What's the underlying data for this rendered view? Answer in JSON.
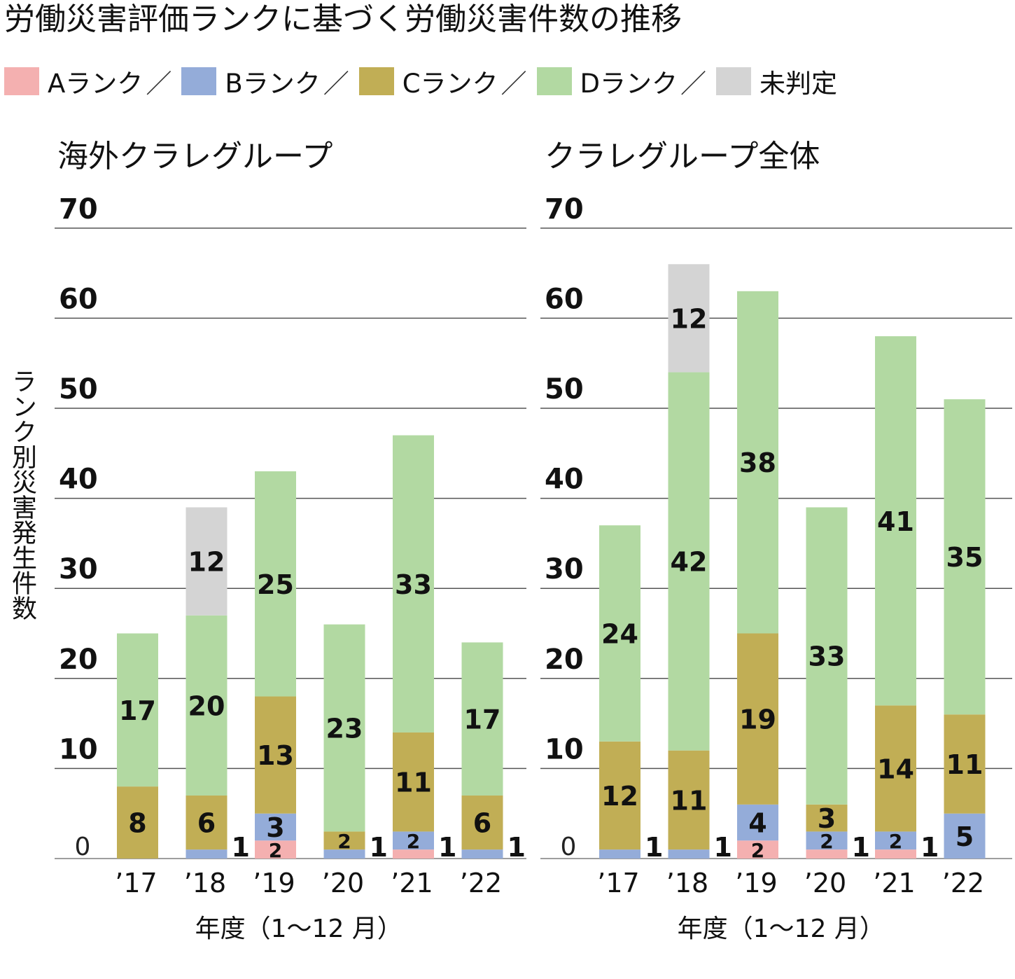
{
  "title": "労働災害評価ランクに基づく労働災害件数の推移",
  "legend": [
    {
      "label": "Aランク",
      "color": "#f4b0b0",
      "sep": "／"
    },
    {
      "label": "Bランク",
      "color": "#94acd9",
      "sep": "／"
    },
    {
      "label": "Cランク",
      "color": "#c1ae55",
      "sep": "／"
    },
    {
      "label": "Dランク",
      "color": "#b2d9a2",
      "sep": "／"
    },
    {
      "label": "未判定",
      "color": "#d4d4d4",
      "sep": ""
    }
  ],
  "y_axis_title": "ランク別災害発生件数",
  "chart_data": [
    {
      "type": "bar",
      "stacked": true,
      "title": "海外クラレグループ",
      "xlabel": "年度（1〜12 月）",
      "ylim": [
        0,
        70
      ],
      "yticks": [
        "0",
        "10",
        "20",
        "30",
        "40",
        "50",
        "60",
        "70"
      ],
      "categories": [
        "’17",
        "’18",
        "’19",
        "’20",
        "’21",
        "’22"
      ],
      "series": [
        {
          "name": "Aランク",
          "values": [
            0,
            0,
            2,
            0,
            1,
            0
          ]
        },
        {
          "name": "Bランク",
          "values": [
            0,
            1,
            3,
            1,
            2,
            1
          ]
        },
        {
          "name": "Cランク",
          "values": [
            8,
            6,
            13,
            2,
            11,
            6
          ]
        },
        {
          "name": "Dランク",
          "values": [
            17,
            20,
            25,
            23,
            33,
            17
          ]
        },
        {
          "name": "未判定",
          "values": [
            0,
            12,
            0,
            0,
            0,
            0
          ]
        }
      ]
    },
    {
      "type": "bar",
      "stacked": true,
      "title": "クラレグループ全体",
      "xlabel": "年度（1〜12 月）",
      "ylim": [
        0,
        70
      ],
      "yticks": [
        "0",
        "10",
        "20",
        "30",
        "40",
        "50",
        "60",
        "70"
      ],
      "categories": [
        "’17",
        "’18",
        "’19",
        "’20",
        "’21",
        "’22"
      ],
      "series": [
        {
          "name": "Aランク",
          "values": [
            0,
            0,
            2,
            1,
            1,
            0
          ]
        },
        {
          "name": "Bランク",
          "values": [
            1,
            1,
            4,
            2,
            2,
            5
          ]
        },
        {
          "name": "Cランク",
          "values": [
            12,
            11,
            19,
            3,
            14,
            11
          ]
        },
        {
          "name": "Dランク",
          "values": [
            24,
            42,
            38,
            33,
            41,
            35
          ]
        },
        {
          "name": "未判定",
          "values": [
            0,
            12,
            0,
            0,
            0,
            0
          ]
        }
      ]
    }
  ]
}
